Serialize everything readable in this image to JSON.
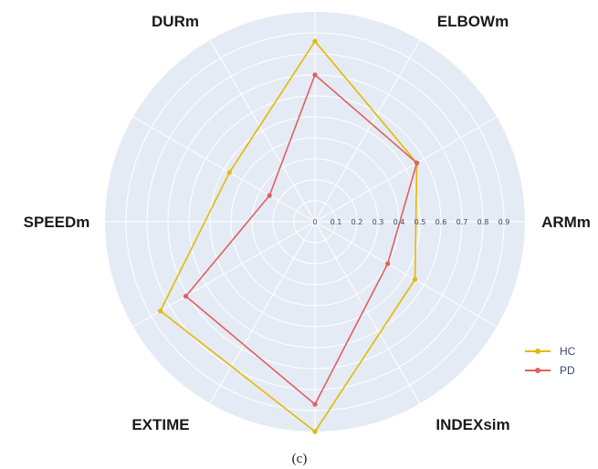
{
  "chart_data": {
    "type": "radar",
    "axes": [
      "ELBOWm",
      "ARMm",
      "INDEXsim",
      "EXTIME",
      "SPEEDm",
      "DURm"
    ],
    "radial_ticks": [
      "0",
      "0.1",
      "0.2",
      "0.3",
      "0.4",
      "0.5",
      "0.6",
      "0.7",
      "0.8",
      "0.9"
    ],
    "range": [
      0,
      1.0
    ],
    "grid": true,
    "legend_position": "bottom-right",
    "series": [
      {
        "name": "HC",
        "color": "#e6b800",
        "values": [
          0.56,
          0.55,
          1.0,
          0.85,
          0.47,
          0.86
        ]
      },
      {
        "name": "PD",
        "color": "#e06060",
        "values": [
          0.56,
          0.4,
          0.87,
          0.71,
          0.25,
          0.7
        ]
      }
    ],
    "caption": "(c)"
  }
}
